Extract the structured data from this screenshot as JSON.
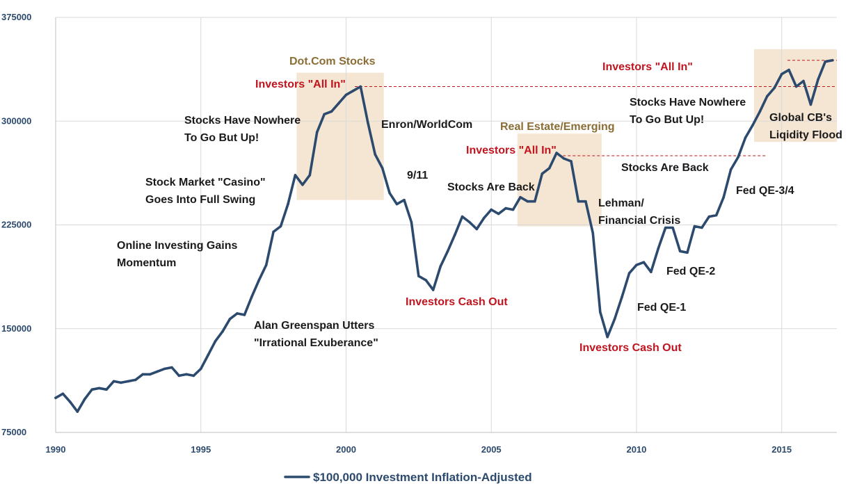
{
  "chart_data": {
    "type": "line",
    "title": "",
    "xlabel": "",
    "ylabel": "",
    "xlim": [
      1990,
      2016.9
    ],
    "ylim": [
      75000,
      375000
    ],
    "grid": true,
    "x_ticks": [
      1990,
      1995,
      2000,
      2005,
      2010,
      2015
    ],
    "x_tick_labels": [
      "1990",
      "1995",
      "2000",
      "2005",
      "2010",
      "2015"
    ],
    "y_ticks": [
      75000,
      150000,
      225000,
      300000,
      375000
    ],
    "y_tick_labels": [
      "75000",
      "150000",
      "225000",
      "300000",
      "375000"
    ],
    "legend": {
      "position": "bottom-center",
      "label": "$100,000 Investment Inflation-Adjusted"
    },
    "colors": {
      "line": "#2c4a6e",
      "black_text": "#1a1a1a",
      "red_text": "#c0141e",
      "tan_text": "#8b6d35",
      "shade": "#f5e6d3",
      "red_dash": "#c0141e",
      "grid": "#d9d9d9"
    },
    "series": [
      {
        "name": "$100,000 Investment Inflation-Adjusted",
        "x": [
          1990,
          1990.25,
          1990.5,
          1990.75,
          1991,
          1991.25,
          1991.5,
          1991.75,
          1992,
          1992.25,
          1992.5,
          1992.75,
          1993,
          1993.25,
          1993.5,
          1993.75,
          1994,
          1994.25,
          1994.5,
          1994.75,
          1995,
          1995.25,
          1995.5,
          1995.75,
          1996,
          1996.25,
          1996.5,
          1996.75,
          1997,
          1997.25,
          1997.5,
          1997.75,
          1998,
          1998.25,
          1998.5,
          1998.75,
          1999,
          1999.25,
          1999.5,
          1999.75,
          2000,
          2000.25,
          2000.5,
          2000.75,
          2001,
          2001.25,
          2001.5,
          2001.75,
          2002,
          2002.25,
          2002.5,
          2002.75,
          2003,
          2003.25,
          2003.5,
          2003.75,
          2004,
          2004.25,
          2004.5,
          2004.75,
          2005,
          2005.25,
          2005.5,
          2005.75,
          2006,
          2006.25,
          2006.5,
          2006.75,
          2007,
          2007.25,
          2007.5,
          2007.75,
          2008,
          2008.25,
          2008.5,
          2008.75,
          2009,
          2009.25,
          2009.5,
          2009.75,
          2010,
          2010.25,
          2010.5,
          2010.75,
          2011,
          2011.25,
          2011.5,
          2011.75,
          2012,
          2012.25,
          2012.5,
          2012.75,
          2013,
          2013.25,
          2013.5,
          2013.75,
          2014,
          2014.25,
          2014.5,
          2014.75,
          2015,
          2015.25,
          2015.5,
          2015.75,
          2016,
          2016.25,
          2016.5,
          2016.75
        ],
        "values": [
          100000,
          103000,
          97000,
          90000,
          99000,
          106000,
          107000,
          106000,
          112000,
          111000,
          112000,
          113000,
          117000,
          117000,
          119000,
          121000,
          122000,
          116000,
          117000,
          116000,
          121000,
          131000,
          141000,
          148000,
          157000,
          161000,
          160000,
          173000,
          185000,
          196000,
          220000,
          224000,
          240000,
          261000,
          254000,
          261000,
          292000,
          305000,
          307000,
          313000,
          319000,
          322000,
          325000,
          299000,
          276000,
          266000,
          248000,
          240000,
          243000,
          227000,
          188000,
          185000,
          178000,
          195000,
          206000,
          218000,
          231000,
          227000,
          222000,
          230000,
          236000,
          233000,
          237000,
          236000,
          245000,
          242000,
          242000,
          262000,
          266000,
          277000,
          273000,
          271000,
          242000,
          242000,
          219000,
          162000,
          144000,
          157000,
          173000,
          190000,
          196000,
          198000,
          191000,
          208000,
          223000,
          223000,
          206000,
          205000,
          224000,
          223000,
          231000,
          232000,
          245000,
          265000,
          274000,
          288000,
          297000,
          307000,
          318000,
          324000,
          334000,
          337000,
          325000,
          329000,
          312000,
          330000,
          343000,
          344000
        ]
      }
    ],
    "annotations": [
      {
        "text": "Online Investing Gains",
        "color": "black"
      },
      {
        "text": "Momentum",
        "color": "black"
      },
      {
        "text": "Stock Market \"Casino\"",
        "color": "black"
      },
      {
        "text": "Goes Into Full Swing",
        "color": "black"
      },
      {
        "text": "Stocks Have Nowhere",
        "color": "black"
      },
      {
        "text": "To Go But Up!",
        "color": "black"
      },
      {
        "text": "Dot.Com Stocks",
        "color": "tan"
      },
      {
        "text": "Investors \"All In\"",
        "color": "red"
      },
      {
        "text": "Enron/WorldCom",
        "color": "black"
      },
      {
        "text": "9/11",
        "color": "black"
      },
      {
        "text": "Alan Greenspan Utters",
        "color": "black"
      },
      {
        "text": "\"Irrational Exuberance\"",
        "color": "black"
      },
      {
        "text": "Investors Cash Out",
        "color": "red"
      },
      {
        "text": "Stocks Are Back",
        "color": "black"
      },
      {
        "text": "Real Estate/Emerging",
        "color": "tan"
      },
      {
        "text": "Investors \"All In\"",
        "color": "red"
      },
      {
        "text": "Lehman/",
        "color": "black"
      },
      {
        "text": "Financial Crisis",
        "color": "black"
      },
      {
        "text": "Investors Cash Out",
        "color": "red"
      },
      {
        "text": "Fed QE-1",
        "color": "black"
      },
      {
        "text": "Fed QE-2",
        "color": "black"
      },
      {
        "text": "Stocks Are Back",
        "color": "black"
      },
      {
        "text": "Fed QE-3/4",
        "color": "black"
      },
      {
        "text": "Stocks Have Nowhere",
        "color": "black"
      },
      {
        "text": "To Go But Up!",
        "color": "black"
      },
      {
        "text": "Investors \"All In\"",
        "color": "red"
      },
      {
        "text": "Global CB's",
        "color": "black"
      },
      {
        "text": "Liqidity Flood",
        "color": "black"
      }
    ],
    "shaded_periods": [
      {
        "name": "Dot.Com Stocks",
        "x": [
          1998.3,
          2001.3
        ],
        "y": [
          243000,
          335000
        ]
      },
      {
        "name": "Real Estate/Emerging",
        "x": [
          2005.9,
          2008.8
        ],
        "y": [
          224000,
          291000
        ]
      },
      {
        "name": "Global CB's Liqidity Flood",
        "x": [
          2014.05,
          2016.9
        ],
        "y": [
          285000,
          352000
        ]
      }
    ],
    "reference_lines": [
      {
        "name": "Dot.Com peak",
        "y": 325000,
        "x": [
          2000.3,
          2016.9
        ]
      },
      {
        "name": "Real Estate peak",
        "y": 275000,
        "x": [
          2007.3,
          2014.5
        ]
      },
      {
        "name": "Current peak",
        "y": 344000,
        "x": [
          2015.2,
          2016.9
        ]
      }
    ]
  }
}
